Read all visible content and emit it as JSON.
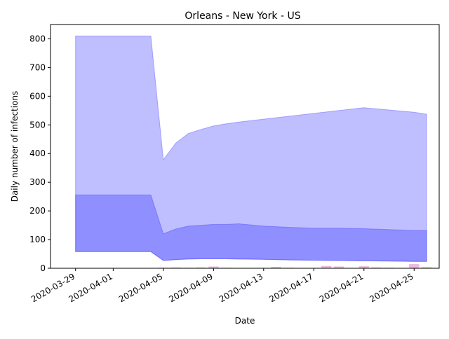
{
  "chart_data": {
    "type": "area",
    "title": "Orleans - New York - US",
    "xlabel": "Date",
    "ylabel": "Daily number of infections",
    "xlim": [
      "2020-03-27",
      "2020-04-27"
    ],
    "ylim": [
      0,
      850
    ],
    "grid": false,
    "x_ticks": [
      "2020-03-29",
      "2020-04-01",
      "2020-04-05",
      "2020-04-09",
      "2020-04-13",
      "2020-04-17",
      "2020-04-21",
      "2020-04-25"
    ],
    "y_ticks": [
      0,
      100,
      200,
      300,
      400,
      500,
      600,
      700,
      800
    ],
    "colors": {
      "outer_band": "#0000ff",
      "outer_band_edge": "#3333ff",
      "inner_band": "#0000ff",
      "bars": "#e377c2"
    },
    "x": [
      "2020-03-29",
      "2020-04-04",
      "2020-04-05",
      "2020-04-06",
      "2020-04-07",
      "2020-04-08",
      "2020-04-09",
      "2020-04-10",
      "2020-04-11",
      "2020-04-13",
      "2020-04-15",
      "2020-04-17",
      "2020-04-19",
      "2020-04-21",
      "2020-04-23",
      "2020-04-25",
      "2020-04-26"
    ],
    "outer_upper": [
      810,
      810,
      378,
      437,
      470,
      484,
      496,
      504,
      510,
      520,
      530,
      540,
      550,
      560,
      552,
      544,
      537
    ],
    "outer_lower": [
      58,
      58,
      27,
      30,
      32,
      33,
      33,
      33,
      32,
      31,
      29,
      28,
      27,
      26,
      25,
      24,
      24
    ],
    "inner_upper": [
      256,
      256,
      120,
      137,
      147,
      150,
      153,
      153,
      155,
      147,
      143,
      140,
      140,
      138,
      135,
      132,
      132
    ],
    "inner_lower": [
      58,
      58,
      27,
      30,
      32,
      33,
      33,
      33,
      32,
      31,
      29,
      28,
      27,
      26,
      25,
      24,
      24
    ],
    "bars": {
      "x": [
        "2020-04-05",
        "2020-04-06",
        "2020-04-07",
        "2020-04-08",
        "2020-04-09",
        "2020-04-10",
        "2020-04-14",
        "2020-04-15",
        "2020-04-18",
        "2020-04-19",
        "2020-04-21",
        "2020-04-22",
        "2020-04-23",
        "2020-04-25",
        "2020-04-26"
      ],
      "values": [
        2,
        3,
        2,
        3,
        6,
        2,
        5,
        2,
        8,
        6,
        7,
        3,
        2,
        15,
        4
      ]
    }
  }
}
